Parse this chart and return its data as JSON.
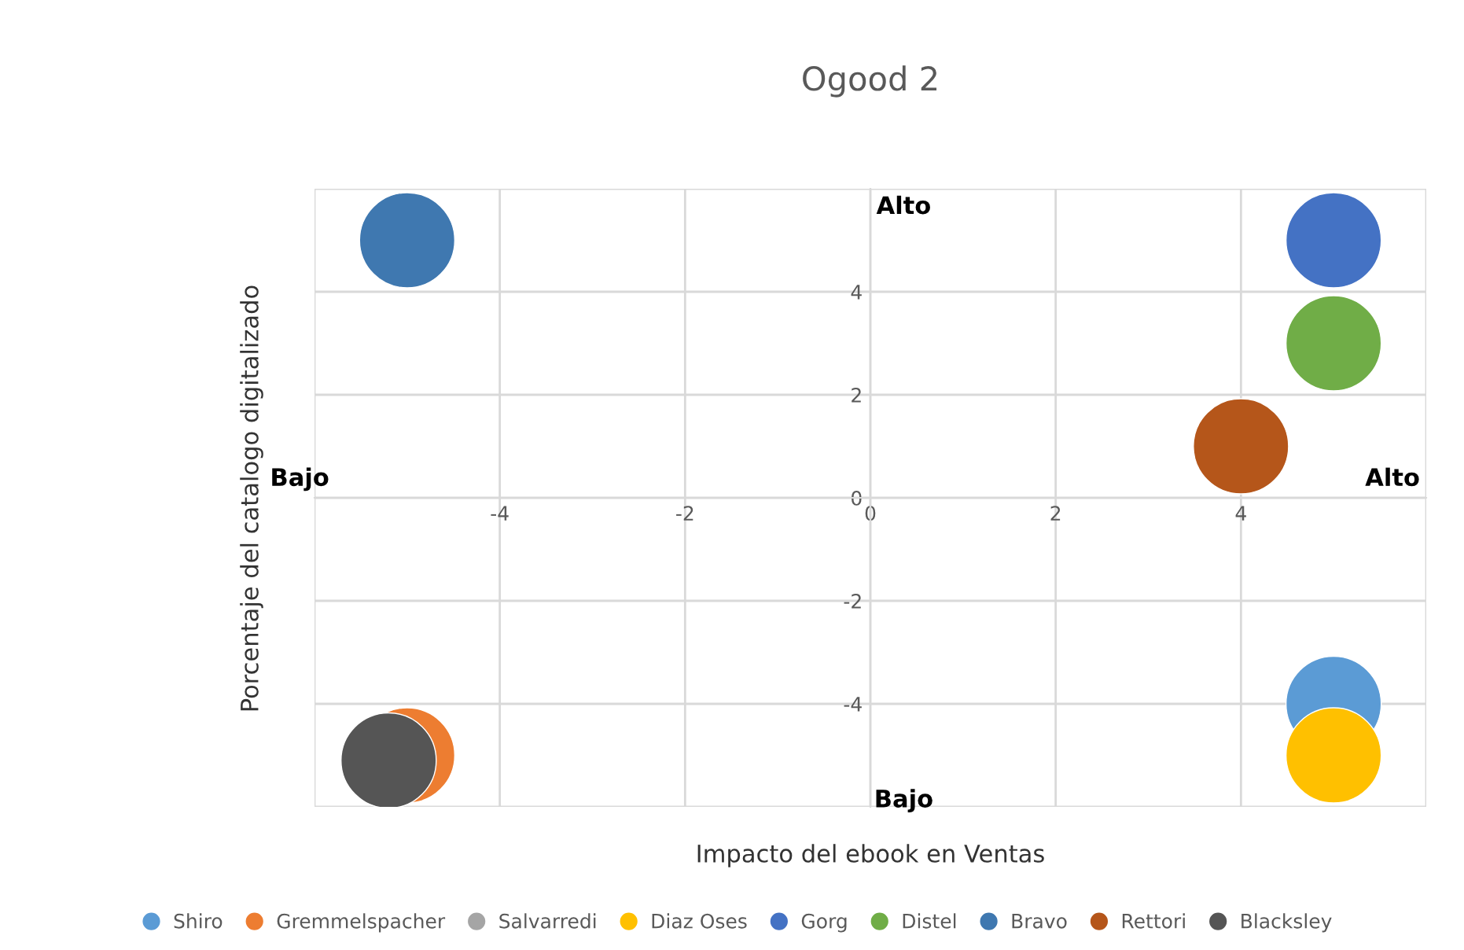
{
  "chart_data": {
    "type": "bubble",
    "title": "Ogood 2",
    "xlabel": "Impacto del ebook en Ventas",
    "ylabel": "Porcentaje del catalogo digitalizado",
    "xlim": [
      -6,
      6
    ],
    "xticks": [
      -4,
      -2,
      0,
      2,
      4
    ],
    "ylim": [
      -6,
      6
    ],
    "yticks": [
      -4,
      -2,
      0,
      2,
      4
    ],
    "grid": true,
    "legend": "bottom",
    "annotations": [
      "Alto",
      "Bajo",
      "Bajo",
      "Alto"
    ],
    "series": [
      {
        "name": "Shiro",
        "color": "#5b9bd5",
        "x": [
          5
        ],
        "values": [
          -4
        ],
        "sizes": [
          1
        ]
      },
      {
        "name": "Gremmelspacher",
        "color": "#ed7d31",
        "x": [
          -5
        ],
        "values": [
          -5
        ],
        "sizes": [
          1
        ]
      },
      {
        "name": "Salvarredi",
        "color": "#a5a5a5",
        "x": [
          null
        ],
        "values": [
          null
        ],
        "sizes": [
          null
        ]
      },
      {
        "name": "Diaz Oses",
        "color": "#ffc000",
        "x": [
          5
        ],
        "values": [
          -5
        ],
        "sizes": [
          1
        ]
      },
      {
        "name": "Gorg",
        "color": "#4472c4",
        "x": [
          5
        ],
        "values": [
          5
        ],
        "sizes": [
          1
        ]
      },
      {
        "name": "Distel",
        "color": "#70ad47",
        "x": [
          5
        ],
        "values": [
          3
        ],
        "sizes": [
          1
        ]
      },
      {
        "name": "Bravo",
        "color": "#3f78b0",
        "x": [
          -5
        ],
        "values": [
          5
        ],
        "sizes": [
          1
        ]
      },
      {
        "name": "Rettori",
        "color": "#b5561a",
        "x": [
          4
        ],
        "values": [
          1
        ],
        "sizes": [
          1
        ]
      },
      {
        "name": "Blacksley",
        "color": "#555555",
        "x": [
          -5.2
        ],
        "values": [
          -5.1
        ],
        "sizes": [
          1
        ]
      }
    ]
  }
}
